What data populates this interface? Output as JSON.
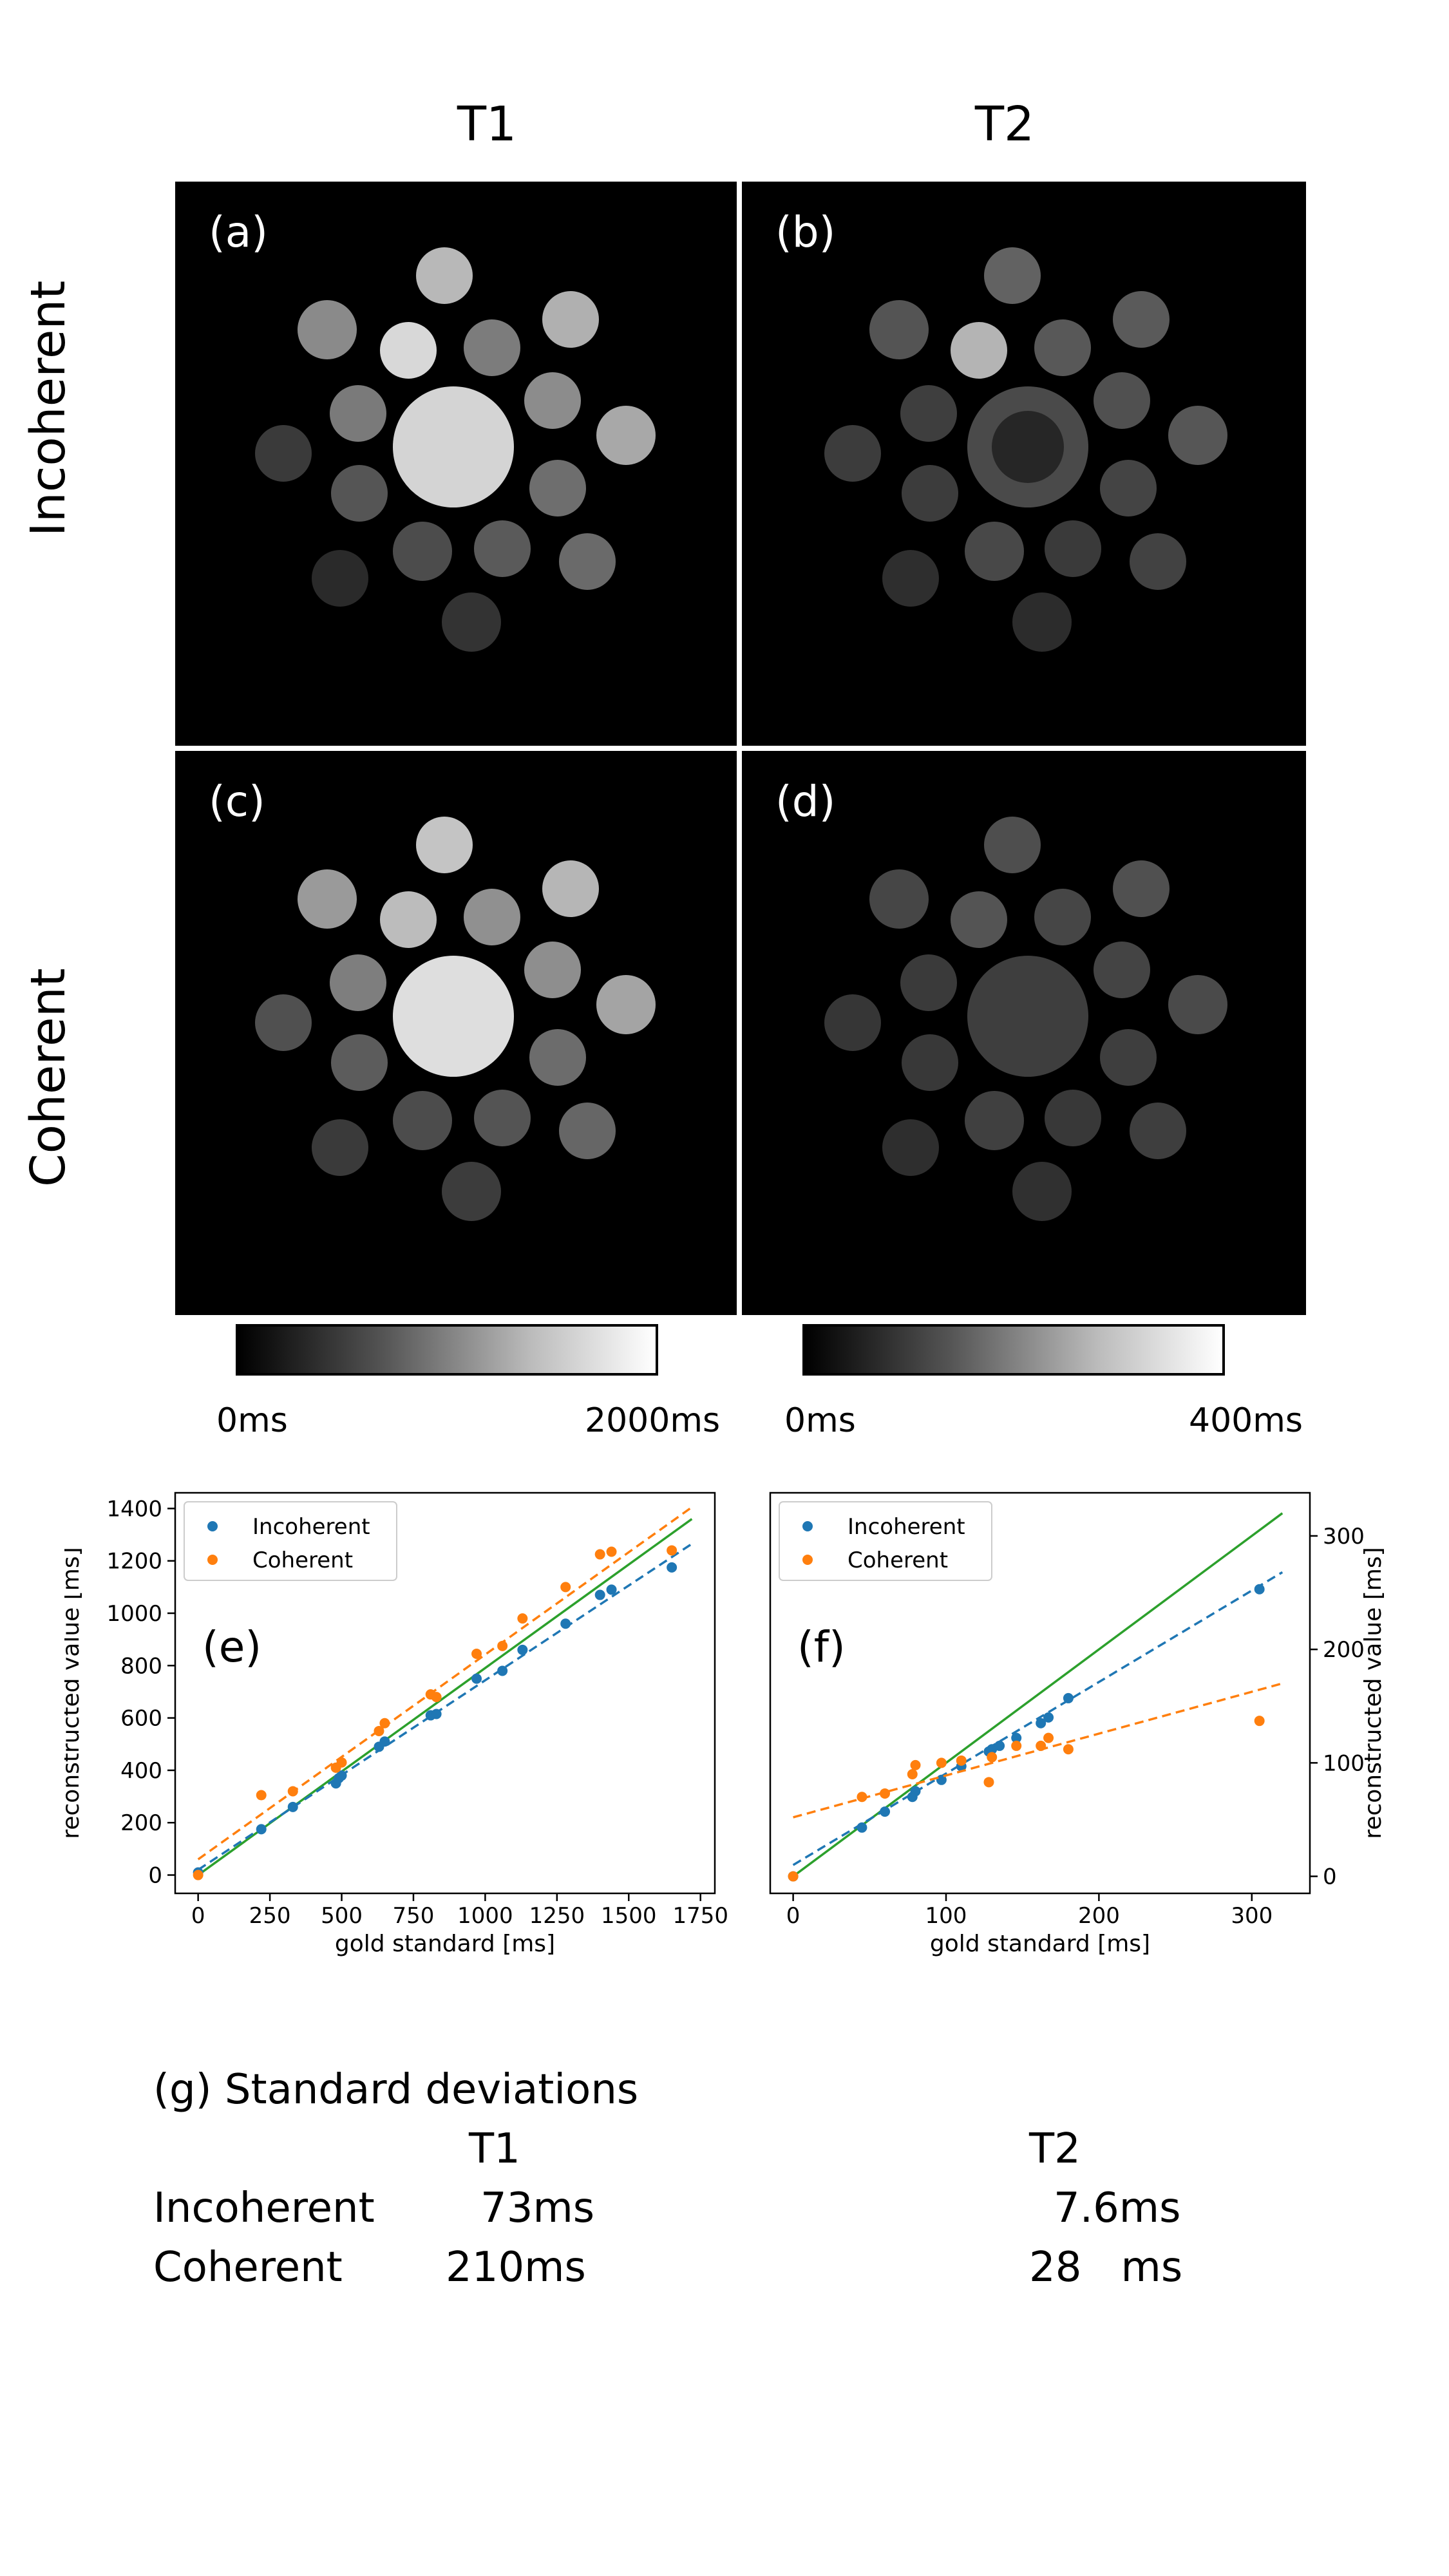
{
  "columns": [
    "T1",
    "T2"
  ],
  "rows": [
    "Incoherent",
    "Coherent"
  ],
  "panels": [
    {
      "letter": "(a)",
      "map": "t1-incoherent"
    },
    {
      "letter": "(b)",
      "map": "t2-incoherent"
    },
    {
      "letter": "(c)",
      "map": "t1-coherent"
    },
    {
      "letter": "(d)",
      "map": "t2-coherent"
    }
  ],
  "colorbars": [
    {
      "min_label": "0ms",
      "max_label": "2000ms"
    },
    {
      "min_label": "0ms",
      "max_label": "400ms"
    }
  ],
  "chart_data": [
    {
      "panel": "(e)",
      "type": "scatter",
      "xlabel": "gold standard [ms]",
      "ylabel": "reconstructed value [ms]",
      "xlim": [
        -80,
        1800
      ],
      "ylim": [
        -70,
        1460
      ],
      "xticks": [
        0,
        250,
        500,
        750,
        1000,
        1250,
        1500,
        1750
      ],
      "yticks": [
        0,
        200,
        400,
        600,
        800,
        1000,
        1200,
        1400
      ],
      "legend": "top-left",
      "series": [
        {
          "name": "Incoherent",
          "color": "#1f77b4",
          "x": [
            0,
            220,
            330,
            480,
            490,
            500,
            630,
            650,
            810,
            830,
            970,
            1060,
            1130,
            1280,
            1400,
            1440,
            1650
          ],
          "y": [
            10,
            175,
            260,
            350,
            370,
            380,
            490,
            510,
            610,
            615,
            750,
            780,
            860,
            960,
            1070,
            1090,
            1175
          ],
          "fit": [
            [
              0,
              20
            ],
            [
              1720,
              1265
            ]
          ]
        },
        {
          "name": "Coherent",
          "color": "#ff7f0e",
          "x": [
            0,
            220,
            330,
            480,
            500,
            630,
            650,
            810,
            830,
            970,
            1060,
            1130,
            1280,
            1400,
            1440,
            1650
          ],
          "y": [
            0,
            305,
            320,
            410,
            430,
            550,
            580,
            690,
            680,
            845,
            875,
            980,
            1100,
            1225,
            1235,
            1240
          ],
          "fit": [
            [
              0,
              60
            ],
            [
              1720,
              1405
            ]
          ]
        }
      ],
      "identity_line": {
        "color": "#2ca02c",
        "from": [
          0,
          0
        ],
        "to": [
          1720,
          1360
        ]
      }
    },
    {
      "panel": "(f)",
      "type": "scatter",
      "xlabel": "gold standard [ms]",
      "ylabel": "reconstructed value [ms]",
      "xlim": [
        -15,
        338
      ],
      "ylim": [
        -15,
        338
      ],
      "xticks": [
        0,
        100,
        200,
        300
      ],
      "yticks": [
        0,
        100,
        200,
        300
      ],
      "legend": "top-left",
      "series": [
        {
          "name": "Incoherent",
          "color": "#1f77b4",
          "x": [
            0,
            45,
            60,
            78,
            80,
            97,
            110,
            128,
            130,
            135,
            146,
            162,
            167,
            180,
            305
          ],
          "y": [
            0,
            43,
            57,
            70,
            75,
            85,
            97,
            110,
            112,
            115,
            122,
            135,
            140,
            157,
            253
          ],
          "fit": [
            [
              0,
              10
            ],
            [
              320,
              268
            ]
          ]
        },
        {
          "name": "Coherent",
          "color": "#ff7f0e",
          "x": [
            0,
            45,
            60,
            78,
            80,
            97,
            110,
            128,
            130,
            146,
            162,
            167,
            180,
            305
          ],
          "y": [
            0,
            70,
            73,
            90,
            98,
            100,
            102,
            83,
            105,
            115,
            115,
            122,
            112,
            137
          ],
          "fit": [
            [
              0,
              52
            ],
            [
              320,
              170
            ]
          ]
        }
      ],
      "identity_line": {
        "color": "#2ca02c",
        "from": [
          0,
          0
        ],
        "to": [
          320,
          320
        ]
      }
    }
  ],
  "table": {
    "title": "(g)  Standard deviations",
    "col_headers": [
      "T1",
      "T2"
    ],
    "rows": [
      {
        "label": "Incoherent",
        "t1": "73ms",
        "t2": "7.6ms"
      },
      {
        "label": "Coherent",
        "t1": "210ms",
        "t2": "28   ms"
      }
    ]
  }
}
